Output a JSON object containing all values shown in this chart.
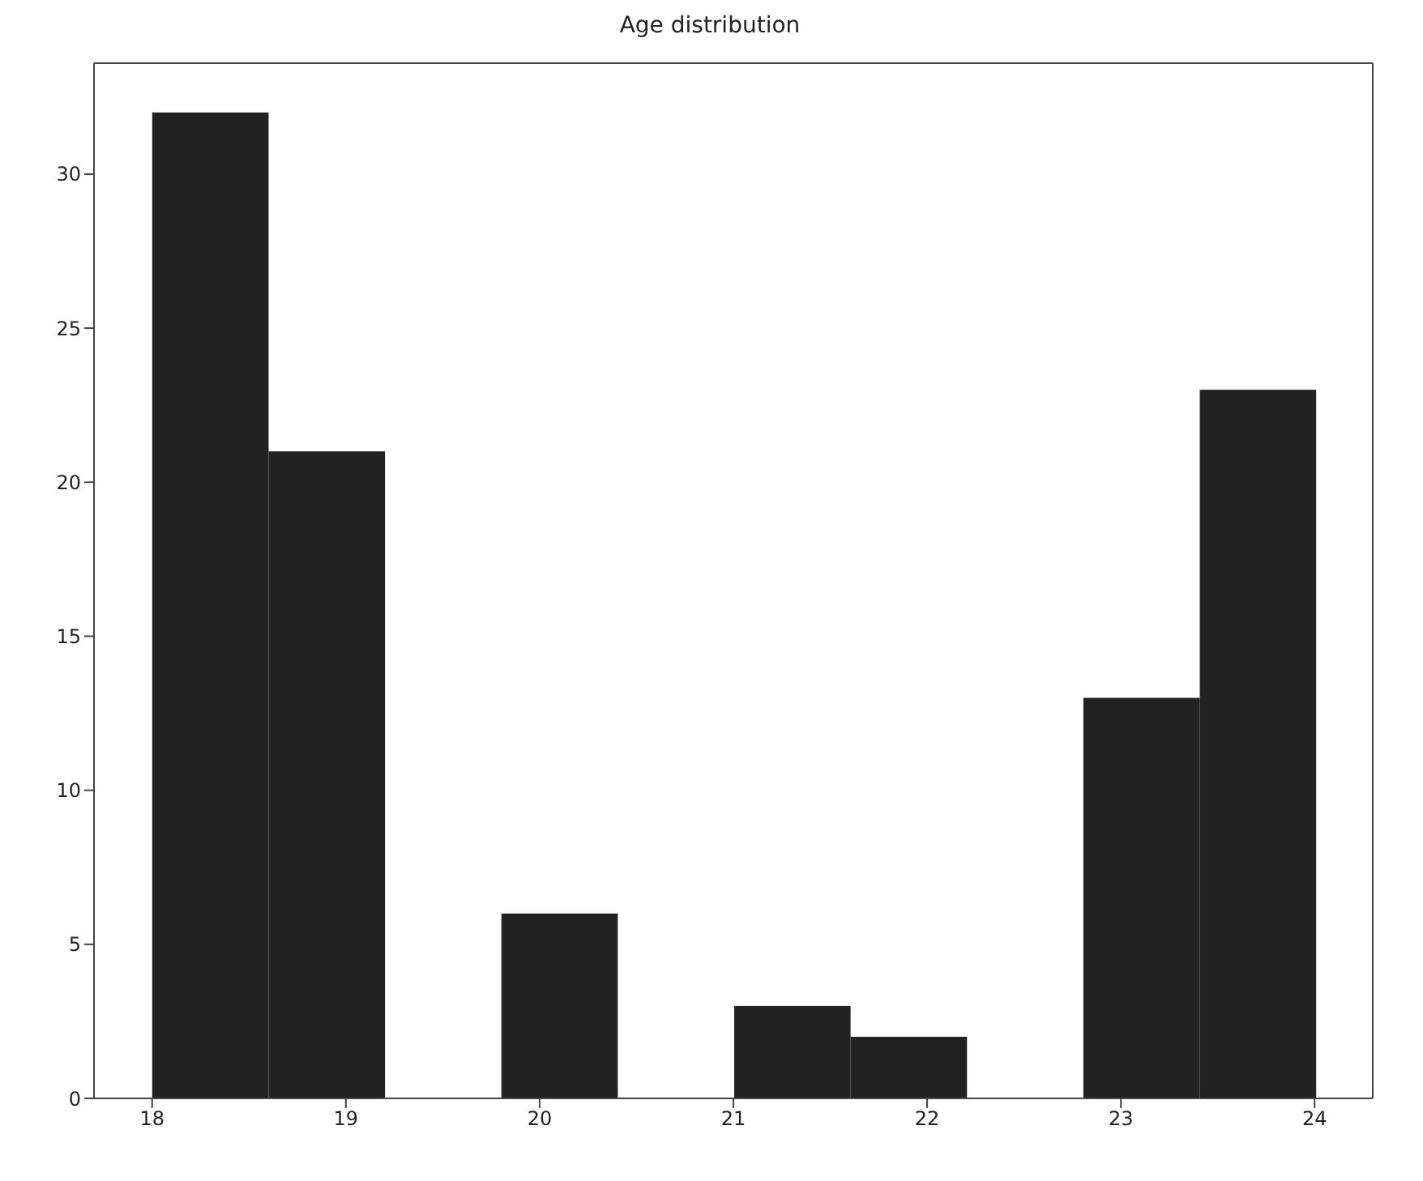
{
  "chart_data": {
    "type": "histogram",
    "title": "Age distribution",
    "bins": [
      18,
      18.6,
      19.2,
      19.8,
      20.4,
      21,
      21.6,
      22.2,
      22.8,
      23.4,
      24
    ],
    "values": [
      32,
      21,
      0,
      6,
      0,
      3,
      2,
      0,
      13,
      23
    ],
    "color": "#222222",
    "xlim": [
      17.7,
      24.3
    ],
    "xticks": [
      18,
      19,
      20,
      21,
      22,
      23,
      24
    ],
    "ylim": [
      0,
      33.6
    ],
    "yticks": [
      0,
      5,
      10,
      15,
      20,
      25,
      30
    ],
    "grid": false,
    "legend": false
  }
}
